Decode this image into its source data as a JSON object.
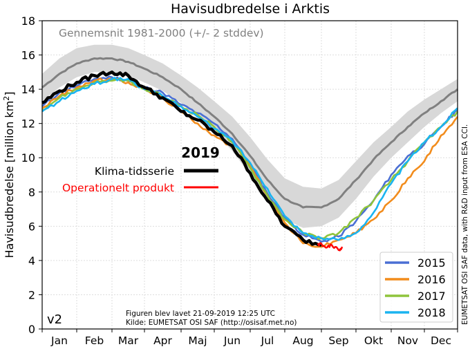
{
  "chart_data": {
    "type": "line",
    "title": "Havisudbredelse i Arktis",
    "xlabel": "",
    "ylabel": "Havisudbredelse [million km²]",
    "ylabel_base": "Havisudbredelse [million km",
    "ylabel_sup": "2",
    "ylabel_end": "]",
    "ylim": [
      0,
      18
    ],
    "yticks": [
      0,
      2,
      4,
      6,
      8,
      10,
      12,
      14,
      16,
      18
    ],
    "xlim": [
      0,
      12
    ],
    "xtick_labels": [
      "Jan",
      "Feb",
      "Mar",
      "Apr",
      "Maj",
      "Jun",
      "Jul",
      "Aug",
      "Sep",
      "Okt",
      "Nov",
      "Dec"
    ],
    "grid": true,
    "x_unit": "months since Jan 1 (sampled every half month)",
    "x": [
      0,
      0.5,
      1,
      1.5,
      2,
      2.5,
      3,
      3.5,
      4,
      4.5,
      5,
      5.5,
      6,
      6.5,
      7,
      7.5,
      8,
      8.5,
      9,
      9.5,
      10,
      10.5,
      11,
      11.5,
      12
    ],
    "climatology": {
      "label": "Gennemsnit 1981-2000 (+/- 2 stddev)",
      "mean": [
        14.1,
        14.9,
        15.5,
        15.8,
        15.8,
        15.6,
        15.2,
        14.7,
        14.0,
        13.2,
        12.4,
        11.4,
        10.1,
        8.7,
        7.6,
        7.1,
        7.1,
        7.6,
        8.7,
        9.9,
        10.9,
        11.8,
        12.6,
        13.3,
        14.0
      ],
      "upper": [
        14.9,
        15.8,
        16.4,
        16.6,
        16.6,
        16.4,
        16.0,
        15.5,
        14.8,
        14.1,
        13.3,
        12.4,
        11.2,
        9.9,
        8.8,
        8.3,
        8.2,
        8.7,
        9.8,
        10.9,
        11.8,
        12.7,
        13.4,
        14.0,
        14.6
      ],
      "lower": [
        13.3,
        14.1,
        14.7,
        15.0,
        15.0,
        14.8,
        14.4,
        13.9,
        13.2,
        12.3,
        11.5,
        10.4,
        9.0,
        7.5,
        6.4,
        5.9,
        6.0,
        6.5,
        7.6,
        8.9,
        10.0,
        10.9,
        11.8,
        12.6,
        13.3
      ],
      "color": "#808080",
      "band_color": "#d8d8d8"
    },
    "series": [
      {
        "name": "2015",
        "color": "#4a6fd4",
        "values": [
          13.0,
          13.8,
          14.2,
          14.6,
          14.7,
          14.5,
          14.1,
          13.8,
          13.1,
          12.6,
          12.0,
          11.1,
          9.6,
          7.9,
          6.5,
          5.5,
          5.1,
          5.4,
          6.3,
          7.5,
          9.0,
          10.1,
          10.8,
          11.8,
          12.8
        ],
        "visible_points": 25
      },
      {
        "name": "2016",
        "color": "#f28c1c",
        "values": [
          12.9,
          13.6,
          14.1,
          14.5,
          14.6,
          14.4,
          14.0,
          13.5,
          12.7,
          12.0,
          11.3,
          10.6,
          9.5,
          7.8,
          6.2,
          5.0,
          4.8,
          5.2,
          5.6,
          6.4,
          7.5,
          8.8,
          9.8,
          11.3,
          12.4
        ],
        "visible_points": 25
      },
      {
        "name": "2017",
        "color": "#8fc43c",
        "values": [
          12.8,
          13.5,
          14.0,
          14.4,
          14.5,
          14.5,
          14.0,
          13.6,
          13.0,
          12.5,
          11.8,
          10.9,
          9.4,
          7.8,
          6.4,
          5.6,
          5.3,
          5.6,
          6.5,
          7.5,
          8.7,
          9.8,
          10.9,
          11.8,
          12.7
        ],
        "visible_points": 25
      },
      {
        "name": "2018",
        "color": "#1ab4f0",
        "values": [
          12.7,
          13.3,
          13.9,
          14.3,
          14.6,
          14.6,
          14.0,
          13.6,
          13.0,
          12.4,
          11.7,
          11.0,
          9.7,
          8.2,
          6.6,
          5.6,
          5.3,
          5.2,
          5.6,
          6.8,
          8.5,
          9.8,
          10.9,
          11.8,
          12.9
        ],
        "visible_points": 25
      },
      {
        "name": "2019 Klima-tidsserie",
        "color": "#000000",
        "values": [
          13.2,
          13.9,
          14.4,
          14.8,
          15.0,
          14.8,
          14.1,
          13.5,
          12.7,
          12.2,
          11.5,
          10.7,
          9.1,
          7.5,
          6.0,
          5.2,
          4.9
        ],
        "visible_points": 17
      },
      {
        "name": "2019 Operationelt produkt",
        "color": "#ff0000",
        "x": [
          7.9,
          8.1,
          8.3,
          8.5,
          8.6
        ],
        "values": [
          5.0,
          4.8,
          4.9,
          4.6,
          4.8
        ]
      }
    ],
    "legend": {
      "placement": "bottom-right",
      "entries": [
        "2015",
        "2016",
        "2017",
        "2018"
      ]
    },
    "annotations": {
      "climatology_label": "Gennemsnit 1981-2000 (+/- 2 stddev)",
      "year_heading": "2019",
      "klima_label": "Klima-tidsserie",
      "operational_label": "Operationelt produkt",
      "version": "v2",
      "created": "Figuren blev lavet 21-09-2019 12:25 UTC",
      "source": "Kilde: EUMETSAT OSI SAF (http://osisaf.met.no)",
      "credit": "EUMETSAT OSI SAF data, with R&D input from ESA CCI."
    }
  }
}
